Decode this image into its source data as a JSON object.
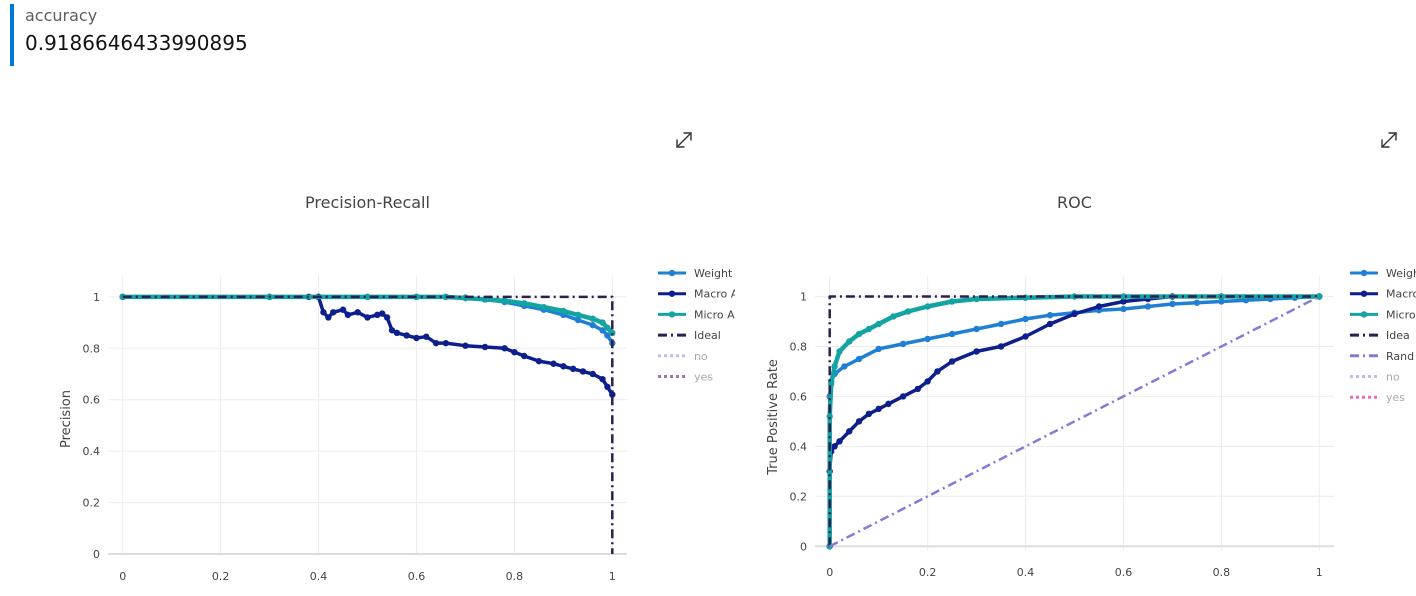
{
  "metric": {
    "name": "accuracy",
    "value": "0.9186646433990895"
  },
  "icons": {
    "expand": "expand-arrows-icon"
  },
  "colors": {
    "weighted": "#1f7fd4",
    "macro": "#0d1f8c",
    "micro": "#14a3a3",
    "ideal": "#2d1f4f",
    "random": "#8a78d8",
    "no": "#c9b8ef",
    "yes_pr": "#a07a96",
    "yes_roc": "#f06ab5"
  },
  "chart_data": [
    {
      "type": "line",
      "title": "Precision-Recall",
      "xlabel": "",
      "ylabel": "Precision",
      "xlim": [
        -0.03,
        1.03
      ],
      "ylim": [
        0,
        1.05
      ],
      "xticks": [
        "0",
        "0.2",
        "0.4",
        "0.6",
        "0.8",
        "1"
      ],
      "yticks": [
        "0",
        "0.2",
        "0.4",
        "0.6",
        "0.8",
        "1"
      ],
      "grid": true,
      "legend_position": "right",
      "series": [
        {
          "name": "Weighted",
          "legend_label": "Weight",
          "style": "line-markers",
          "x": [
            0,
            0.3,
            0.4,
            0.5,
            0.6,
            0.66,
            0.7,
            0.74,
            0.78,
            0.82,
            0.86,
            0.9,
            0.93,
            0.96,
            0.98,
            0.99,
            1
          ],
          "y": [
            1,
            1,
            1,
            1,
            1,
            1,
            0.997,
            0.99,
            0.98,
            0.965,
            0.95,
            0.93,
            0.91,
            0.89,
            0.87,
            0.85,
            0.82
          ]
        },
        {
          "name": "Macro",
          "legend_label": "Macro A",
          "style": "line-markers",
          "x": [
            0,
            0.3,
            0.38,
            0.4,
            0.41,
            0.42,
            0.43,
            0.45,
            0.46,
            0.48,
            0.5,
            0.52,
            0.53,
            0.54,
            0.55,
            0.56,
            0.58,
            0.6,
            0.62,
            0.64,
            0.66,
            0.7,
            0.74,
            0.78,
            0.8,
            0.82,
            0.85,
            0.88,
            0.9,
            0.92,
            0.94,
            0.96,
            0.98,
            0.99,
            1
          ],
          "y": [
            1,
            1,
            1,
            1,
            0.94,
            0.92,
            0.94,
            0.95,
            0.93,
            0.94,
            0.92,
            0.93,
            0.935,
            0.92,
            0.87,
            0.86,
            0.85,
            0.84,
            0.845,
            0.82,
            0.82,
            0.81,
            0.805,
            0.8,
            0.785,
            0.77,
            0.75,
            0.74,
            0.73,
            0.72,
            0.71,
            0.7,
            0.68,
            0.65,
            0.62
          ]
        },
        {
          "name": "Micro",
          "legend_label": "Micro A",
          "style": "line-markers",
          "x": [
            0,
            0.3,
            0.5,
            0.6,
            0.66,
            0.7,
            0.74,
            0.78,
            0.82,
            0.86,
            0.9,
            0.93,
            0.96,
            0.98,
            0.99,
            1
          ],
          "y": [
            1,
            1,
            1,
            1,
            1,
            0.995,
            0.99,
            0.985,
            0.975,
            0.96,
            0.945,
            0.93,
            0.915,
            0.9,
            0.88,
            0.86
          ]
        },
        {
          "name": "Ideal",
          "legend_label": "Ideal",
          "style": "dashdot",
          "x": [
            0,
            1,
            1
          ],
          "y": [
            1,
            1,
            0
          ]
        },
        {
          "name": "no",
          "legend_label": "no",
          "style": "dotted",
          "legendonly": true,
          "x": [],
          "y": []
        },
        {
          "name": "yes",
          "legend_label": "yes",
          "style": "dotted",
          "legendonly": true,
          "x": [],
          "y": []
        }
      ]
    },
    {
      "type": "line",
      "title": "ROC",
      "xlabel": "",
      "ylabel": "True Positive Rate",
      "xlim": [
        -0.03,
        1.03
      ],
      "ylim": [
        -0.015,
        1.05
      ],
      "xticks": [
        "0",
        "0.2",
        "0.4",
        "0.6",
        "0.8",
        "1"
      ],
      "yticks": [
        "0",
        "0.2",
        "0.4",
        "0.6",
        "0.8",
        "1"
      ],
      "grid": true,
      "legend_position": "right",
      "series": [
        {
          "name": "Weighted",
          "legend_label": "Weigh",
          "style": "line-markers",
          "x": [
            0,
            0,
            0.003,
            0.01,
            0.03,
            0.06,
            0.1,
            0.15,
            0.2,
            0.25,
            0.3,
            0.35,
            0.4,
            0.45,
            0.5,
            0.55,
            0.6,
            0.65,
            0.7,
            0.75,
            0.8,
            0.85,
            0.9,
            0.95,
            1
          ],
          "y": [
            0,
            0.6,
            0.66,
            0.69,
            0.72,
            0.75,
            0.79,
            0.81,
            0.83,
            0.85,
            0.87,
            0.89,
            0.91,
            0.925,
            0.935,
            0.945,
            0.95,
            0.96,
            0.97,
            0.975,
            0.98,
            0.985,
            0.99,
            0.995,
            1
          ]
        },
        {
          "name": "Macro",
          "legend_label": "Macro",
          "style": "line-markers",
          "x": [
            0,
            0,
            0.003,
            0.01,
            0.02,
            0.04,
            0.06,
            0.08,
            0.1,
            0.12,
            0.15,
            0.18,
            0.2,
            0.22,
            0.25,
            0.3,
            0.35,
            0.4,
            0.45,
            0.5,
            0.55,
            0.6,
            0.65,
            0.7,
            0.8,
            1
          ],
          "y": [
            0,
            0.3,
            0.38,
            0.4,
            0.42,
            0.46,
            0.5,
            0.53,
            0.55,
            0.57,
            0.6,
            0.63,
            0.66,
            0.7,
            0.74,
            0.78,
            0.8,
            0.84,
            0.89,
            0.93,
            0.96,
            0.98,
            0.99,
            1,
            1,
            1
          ]
        },
        {
          "name": "Micro",
          "legend_label": "Micro",
          "style": "line-markers",
          "x": [
            0,
            0,
            0.003,
            0.01,
            0.02,
            0.04,
            0.06,
            0.08,
            0.1,
            0.13,
            0.16,
            0.2,
            0.25,
            0.3,
            0.4,
            0.5,
            0.6,
            0.8,
            1
          ],
          "y": [
            0,
            0.52,
            0.65,
            0.72,
            0.78,
            0.82,
            0.85,
            0.87,
            0.89,
            0.92,
            0.94,
            0.96,
            0.98,
            0.99,
            0.995,
            1,
            1,
            1,
            1
          ]
        },
        {
          "name": "Ideal",
          "legend_label": "Idea",
          "style": "dashdot",
          "x": [
            0,
            0,
            1
          ],
          "y": [
            0,
            1,
            1
          ]
        },
        {
          "name": "Random",
          "legend_label": "Rand",
          "style": "dashdot",
          "x": [
            0,
            1
          ],
          "y": [
            0,
            1
          ]
        },
        {
          "name": "no",
          "legend_label": "no",
          "style": "dotted",
          "legendonly": true,
          "x": [],
          "y": []
        },
        {
          "name": "yes",
          "legend_label": "yes",
          "style": "dotted",
          "legendonly": true,
          "x": [],
          "y": []
        }
      ]
    }
  ]
}
